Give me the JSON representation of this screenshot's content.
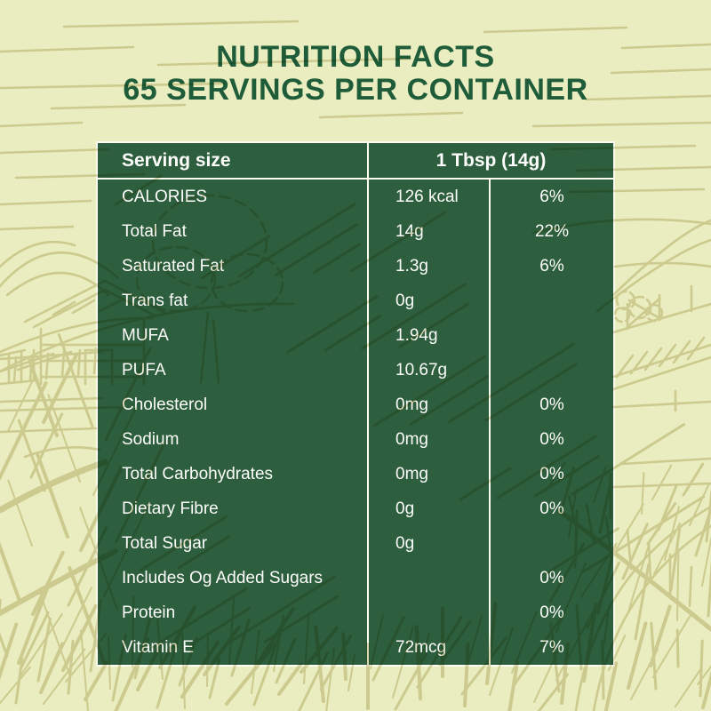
{
  "title": {
    "line1": "NUTRITION FACTS",
    "line2": "65 SERVINGS PER CONTAINER"
  },
  "table": {
    "header": {
      "label": "Serving size",
      "value": "1 Tbsp (14g)"
    },
    "rows": [
      {
        "label": "CALORIES",
        "amount": "126 kcal",
        "dv": "6%"
      },
      {
        "label": "Total Fat",
        "amount": "14g",
        "dv": "22%"
      },
      {
        "label": "Saturated Fat",
        "amount": "1.3g",
        "dv": "6%"
      },
      {
        "label": "Trans fat",
        "amount": "0g",
        "dv": ""
      },
      {
        "label": "MUFA",
        "amount": "1.94g",
        "dv": ""
      },
      {
        "label": "PUFA",
        "amount": "10.67g",
        "dv": ""
      },
      {
        "label": "Cholesterol",
        "amount": "0mg",
        "dv": "0%"
      },
      {
        "label": "Sodium",
        "amount": "0mg",
        "dv": "0%"
      },
      {
        "label": "Total Carbohydrates",
        "amount": "0mg",
        "dv": "0%"
      },
      {
        "label": "Dietary Fibre",
        "amount": "0g",
        "dv": "0%"
      },
      {
        "label": "Total Sugar",
        "amount": "0g",
        "dv": ""
      },
      {
        "label": "Includes Og Added Sugars",
        "amount": "",
        "dv": "0%"
      },
      {
        "label": "Protein",
        "amount": "",
        "dv": "0%"
      },
      {
        "label": "Vitamin E",
        "amount": "72mcg",
        "dv": "7%"
      }
    ]
  },
  "colors": {
    "background": "#eaedbf",
    "illustration_stroke": "#c9c291",
    "table_green": "#2d5e3d",
    "title_green": "#1e5c3a",
    "table_text": "#fdfdfb",
    "divider": "#fbfcf0"
  }
}
